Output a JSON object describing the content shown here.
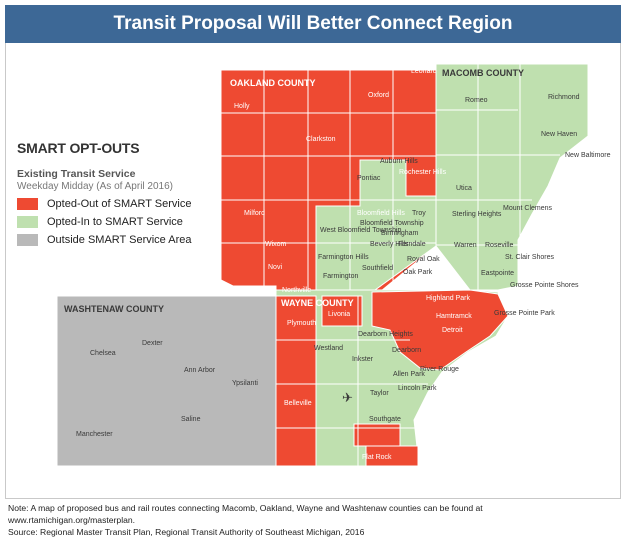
{
  "title": "Transit Proposal Will Better Connect Region",
  "colors": {
    "title_bar": "#3d6896",
    "opted_out": "#ee4a32",
    "opted_in": "#bfe0af",
    "outside": "#b9b9b9",
    "boundary": "#ffffff"
  },
  "legend": {
    "title": "SMART OPT-OUTS",
    "subtitle": "Existing Transit Service",
    "subtitle2": "Weekday Midday (As of April 2016)",
    "items": [
      {
        "label": "Opted-Out of SMART Service",
        "color": "#ee4a32"
      },
      {
        "label": "Opted-In to SMART Service",
        "color": "#bfe0af"
      },
      {
        "label": "Outside SMART Service Area",
        "color": "#b9b9b9"
      }
    ]
  },
  "counties": {
    "oakland": "OAKLAND COUNTY",
    "macomb": "MACOMB COUNTY",
    "wayne": "WAYNE COUNTY",
    "washtenaw": "WASHTENAW COUNTY"
  },
  "places": {
    "holly": "Holly",
    "oxford": "Oxford",
    "leonard": "Leonard",
    "romeo": "Romeo",
    "richmond": "Richmond",
    "clarkston": "Clarkston",
    "new_baltimore": "New Baltimore",
    "new_haven": "New Haven",
    "auburn_hills": "Auburn Hills",
    "rochester_hills": "Rochester Hills",
    "pontiac": "Pontiac",
    "utica": "Utica",
    "milford": "Milford",
    "bloomfield_hills": "Bloomfield Hills",
    "troy": "Troy",
    "sterling_heights": "Sterling Heights",
    "mount_clemens": "Mount Clemens",
    "west_bloomfield": "West Bloomfield Township",
    "bloomfield_twp": "Bloomfield Township",
    "birmingham": "Birmingham",
    "beverly_hills": "Beverly Hills",
    "ferndale": "Ferndale",
    "wixom": "Wixom",
    "warren": "Warren",
    "roseville": "Roseville",
    "st_clair_shores": "St. Clair Shores",
    "royal_oak": "Royal Oak",
    "farmington_hills": "Farmington Hills",
    "farmington": "Farmington",
    "southfield": "Southfield",
    "novi": "Novi",
    "oak_park": "Oak Park",
    "eastpointe": "Eastpointe",
    "northville": "Northville",
    "grosse_pointe_shores": "Grosse Pointe Shores",
    "highland_park": "Highland Park",
    "hamtramck": "Hamtramck",
    "livonia": "Livonia",
    "plymouth": "Plymouth",
    "grosse_pointe_park": "Grosse Pointe Park",
    "detroit": "Detroit",
    "dexter": "Dexter",
    "chelsea": "Chelsea",
    "westland": "Westland",
    "dearborn_heights": "Dearborn Heights",
    "dearborn": "Dearborn",
    "inkster": "Inkster",
    "allen_park": "Allen Park",
    "ann_arbor": "Ann Arbor",
    "river_rouge": "River Rouge",
    "ypsilanti": "Ypsilanti",
    "lincoln_park": "Lincoln Park",
    "taylor": "Taylor",
    "belleville": "Belleville",
    "saline": "Saline",
    "manchester": "Manchester",
    "southgate": "Southgate",
    "flat_rock": "Flat Rock"
  },
  "notes": {
    "line1": "Note: A map of proposed bus and rail routes connecting Macomb, Oakland, Wayne and Washtenaw counties can be found at",
    "line2": "www.rtamichigan.org/masterplan.",
    "line3": "Source: Regional Master Transit Plan, Regional Transit Authority of Southeast Michigan, 2016"
  }
}
